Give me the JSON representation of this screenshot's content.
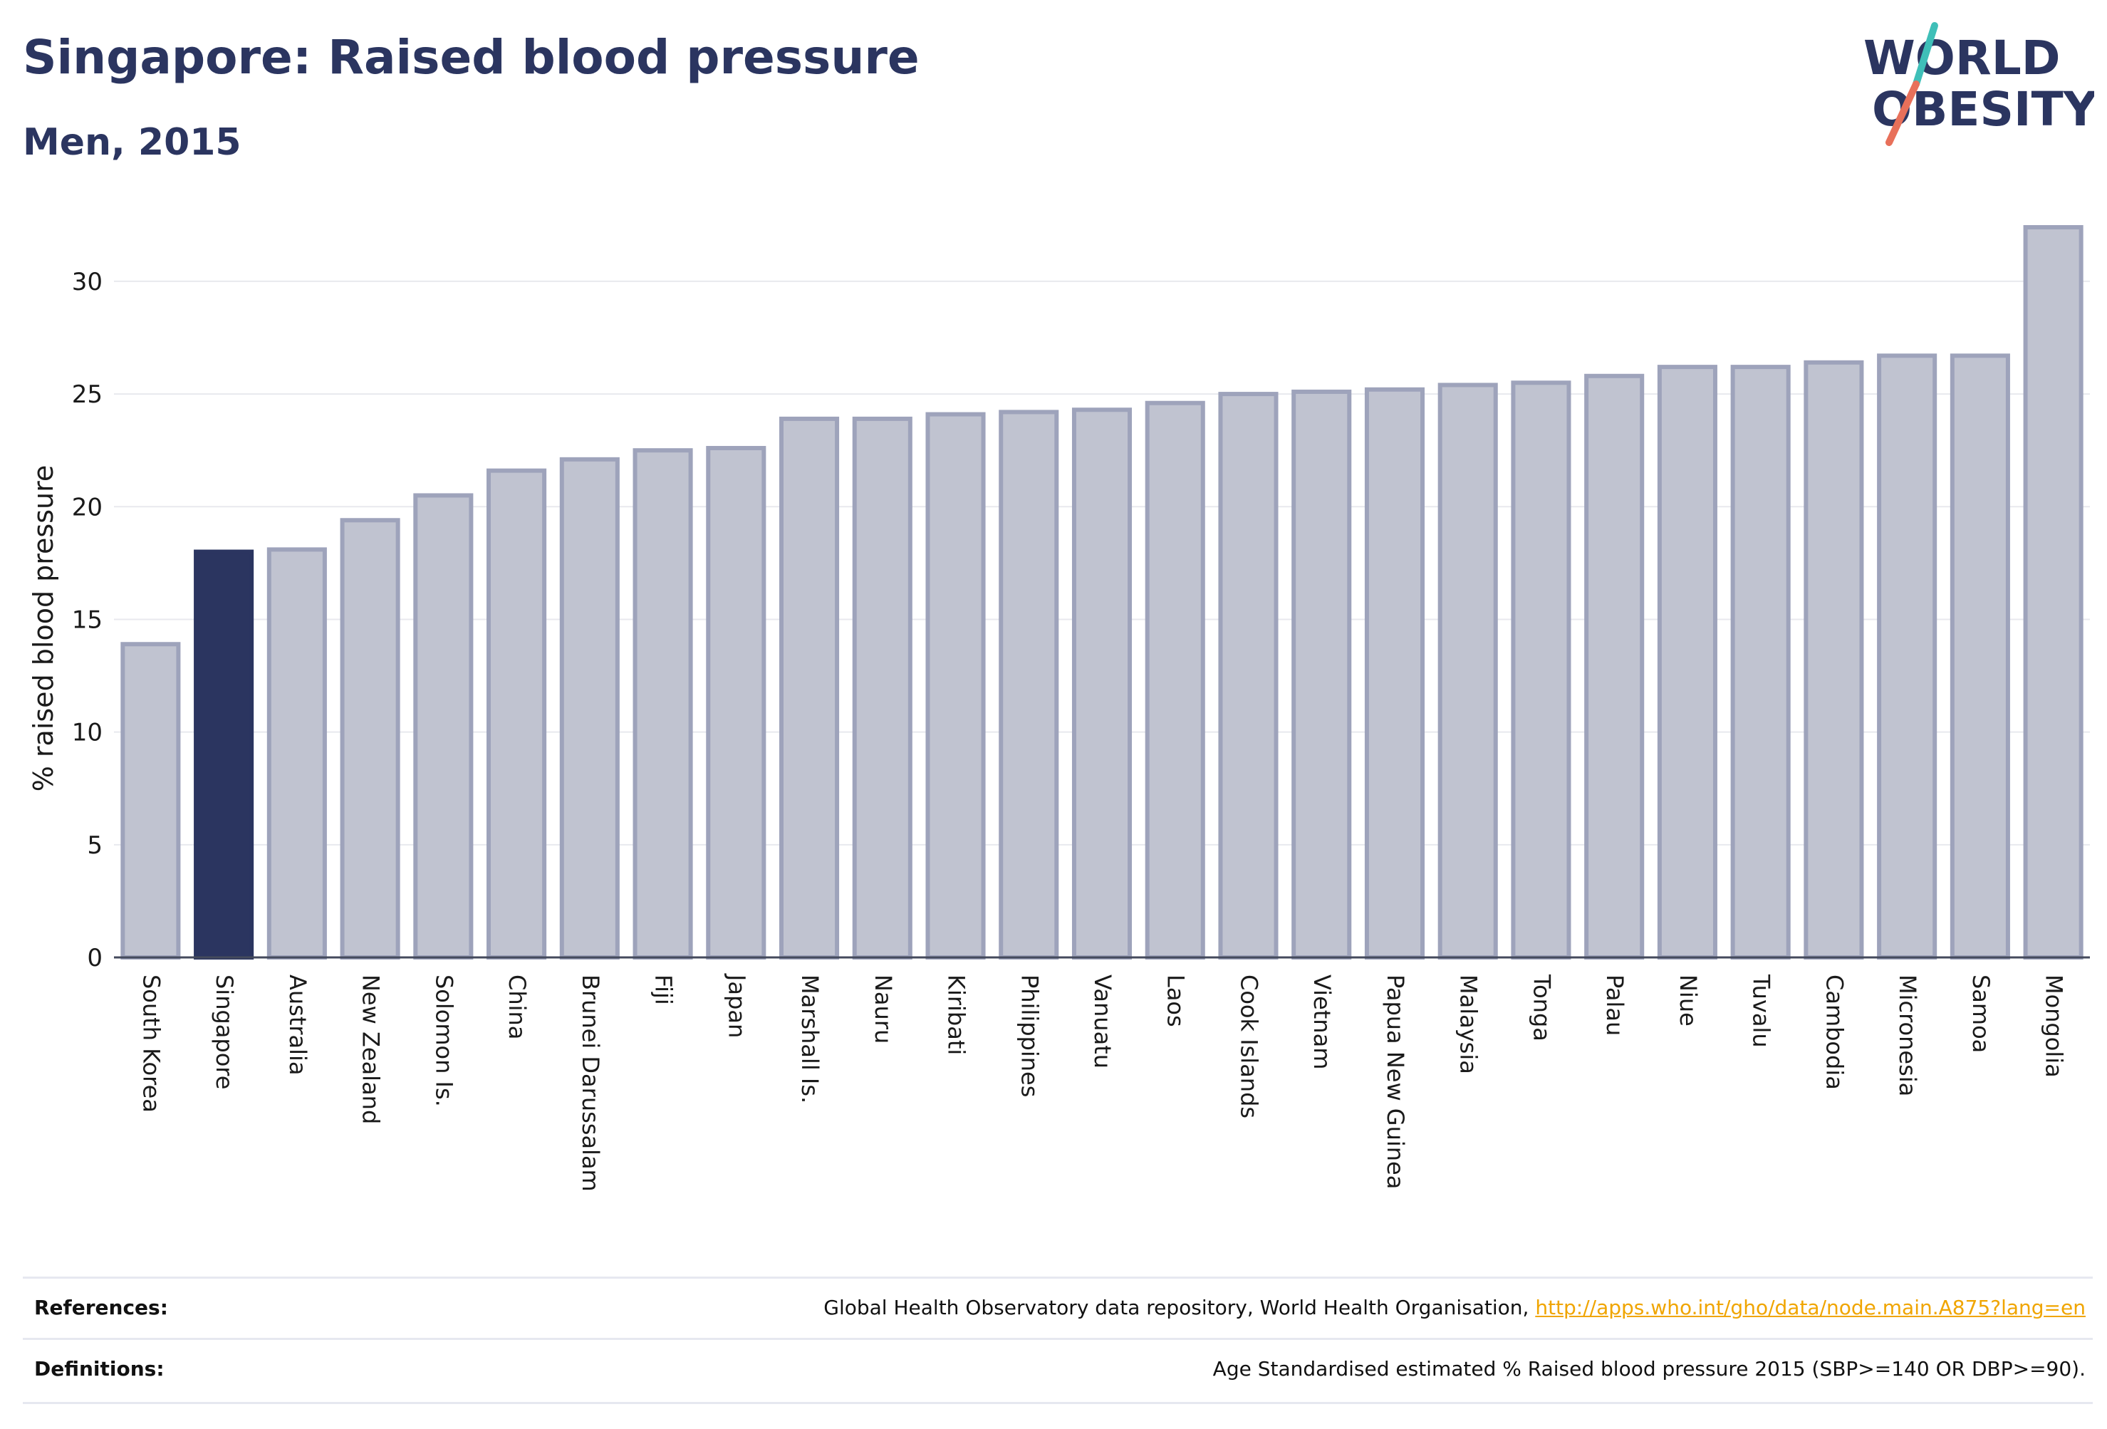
{
  "title": "Singapore: Raised blood pressure",
  "subtitle": "Men, 2015",
  "logo": {
    "line1": "WORLD",
    "line2": "OBESITY"
  },
  "colors": {
    "highlight": "#2b3560",
    "bar": "#c0c3d0",
    "bar_stroke": "#9ea3bb",
    "title": "#2b3560",
    "link": "#f0a500"
  },
  "chart_data": {
    "type": "bar",
    "categories": [
      "South Korea",
      "Singapore",
      "Australia",
      "New Zealand",
      "Solomon Is.",
      "China",
      "Brunei Darussalam",
      "Fiji",
      "Japan",
      "Marshall Is.",
      "Nauru",
      "Kiribati",
      "Philippines",
      "Vanuatu",
      "Laos",
      "Cook Islands",
      "Vietnam",
      "Papua New Guinea",
      "Malaysia",
      "Tonga",
      "Palau",
      "Niue",
      "Tuvalu",
      "Cambodia",
      "Micronesia",
      "Samoa",
      "Mongolia"
    ],
    "values": [
      13.9,
      18.0,
      18.1,
      19.4,
      20.5,
      21.6,
      22.1,
      22.5,
      22.6,
      23.9,
      23.9,
      24.1,
      24.2,
      24.3,
      24.6,
      25.0,
      25.1,
      25.2,
      25.4,
      25.5,
      25.8,
      26.2,
      26.2,
      26.4,
      26.7,
      26.7,
      32.4
    ],
    "highlight": "Singapore",
    "ylabel": "% raised blood pressure",
    "xlabel": "",
    "ylim": [
      0,
      33
    ],
    "yticks": [
      0,
      5,
      10,
      15,
      20,
      25,
      30
    ],
    "grid": true
  },
  "footer": {
    "references_label": "References:",
    "references_text": "Global Health Observatory data repository, World Health Organisation, ",
    "references_link": "http://apps.who.int/gho/data/node.main.A875?lang=en",
    "definitions_label": "Definitions:",
    "definitions_text": "Age Standardised estimated % Raised blood pressure 2015 (SBP>=140 OR DBP>=90)."
  }
}
